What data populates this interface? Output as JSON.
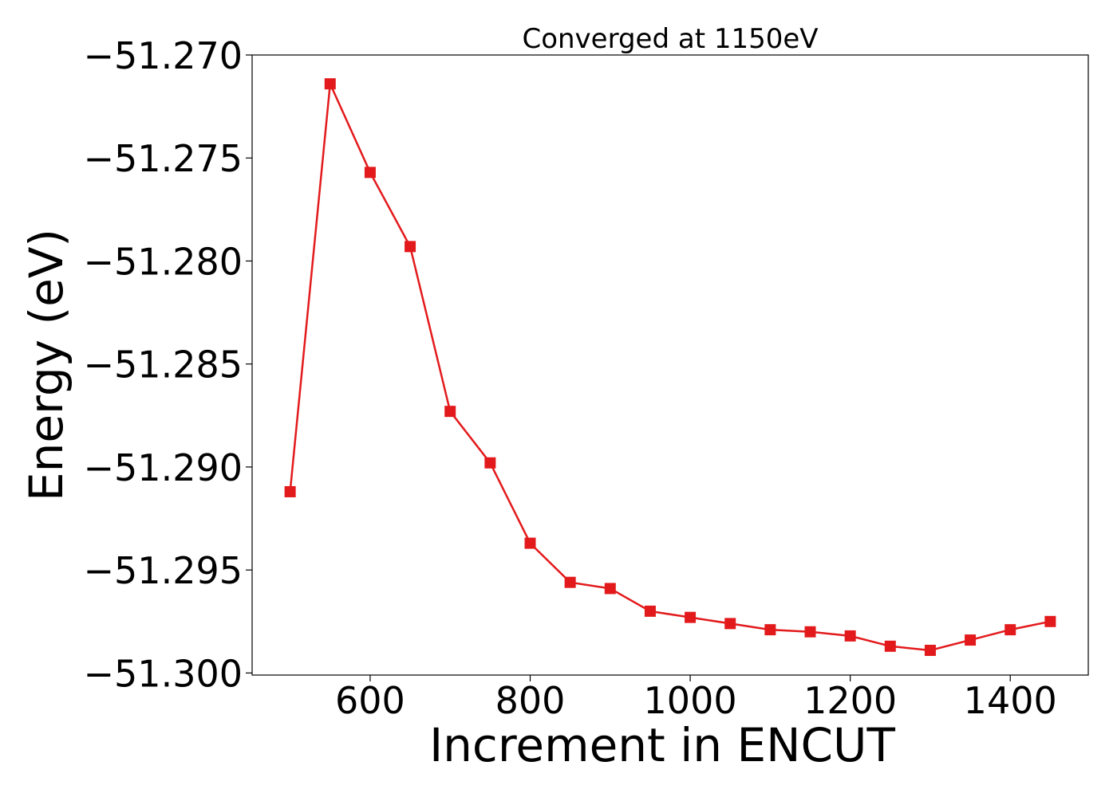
{
  "chart_data": {
    "type": "line",
    "title": "Converged at 1150eV",
    "xlabel": "Increment in ENCUT",
    "ylabel": "Energy (eV)",
    "xlim": [
      452.5,
      1497.5
    ],
    "ylim": [
      -51.3001,
      -51.27
    ],
    "x_ticks": [
      600,
      800,
      1000,
      1200,
      1400
    ],
    "y_ticks": [
      -51.27,
      -51.275,
      -51.28,
      -51.285,
      -51.29,
      -51.295,
      -51.3
    ],
    "y_tick_labels": [
      "−51.270",
      "−51.275",
      "−51.280",
      "−51.285",
      "−51.290",
      "−51.295",
      "−51.300"
    ],
    "grid": false,
    "series": [
      {
        "color": "#e31a1c",
        "marker": "square",
        "x": [
          500,
          550,
          600,
          650,
          700,
          750,
          800,
          850,
          900,
          950,
          1000,
          1050,
          1100,
          1150,
          1200,
          1250,
          1300,
          1350,
          1400,
          1450
        ],
        "y": [
          -51.2912,
          -51.2714,
          -51.2757,
          -51.2793,
          -51.2873,
          -51.2898,
          -51.2937,
          -51.2956,
          -51.2959,
          -51.297,
          -51.2973,
          -51.2976,
          -51.2979,
          -51.298,
          -51.2982,
          -51.2987,
          -51.2989,
          -51.2984,
          -51.2979,
          -51.2975
        ]
      }
    ]
  }
}
